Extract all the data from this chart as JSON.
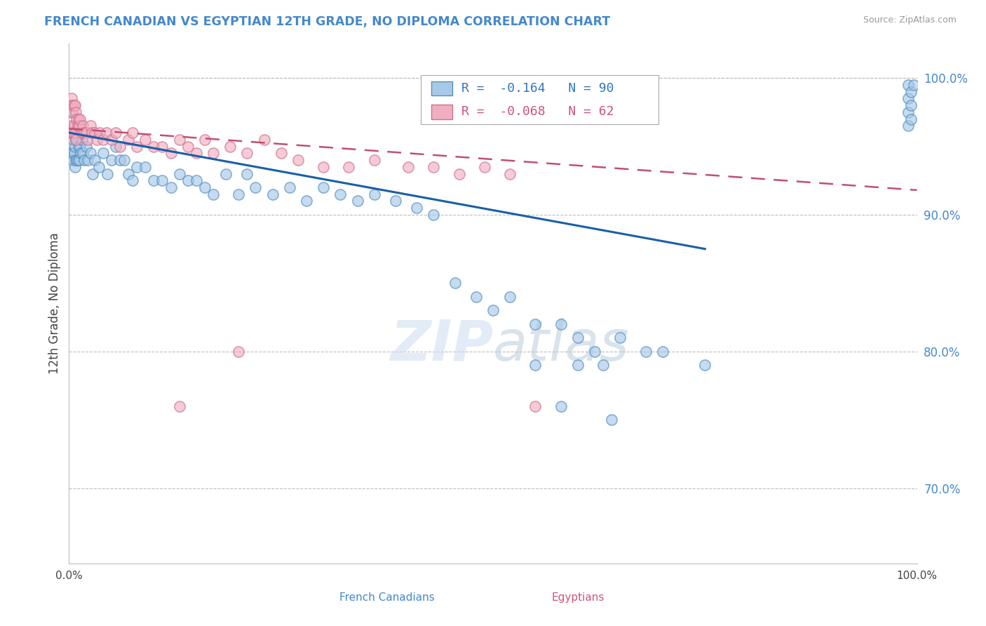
{
  "title": "FRENCH CANADIAN VS EGYPTIAN 12TH GRADE, NO DIPLOMA CORRELATION CHART",
  "source": "Source: ZipAtlas.com",
  "ylabel": "12th Grade, No Diploma",
  "watermark_zip": "ZIP",
  "watermark_atlas": "atlas",
  "blue_label": "French Canadians",
  "pink_label": "Egyptians",
  "blue_R": -0.164,
  "blue_N": 90,
  "pink_R": -0.068,
  "pink_N": 62,
  "blue_color": "#a8c8e8",
  "blue_edge": "#5590c0",
  "pink_color": "#f0afc0",
  "pink_edge": "#d07090",
  "blue_line_color": "#1a5fa8",
  "pink_line_color": "#c05070",
  "xlim": [
    0.0,
    1.0
  ],
  "ylim": [
    0.645,
    1.025
  ],
  "yticks": [
    0.7,
    0.8,
    0.9,
    1.0
  ],
  "ytick_labels": [
    "70.0%",
    "80.0%",
    "90.0%",
    "100.0%"
  ],
  "grid_color": "#bbbbbb",
  "bg_color": "#ffffff",
  "blue_x": [
    0.002,
    0.003,
    0.003,
    0.003,
    0.004,
    0.004,
    0.005,
    0.005,
    0.006,
    0.006,
    0.007,
    0.007,
    0.007,
    0.008,
    0.008,
    0.009,
    0.009,
    0.01,
    0.01,
    0.011,
    0.012,
    0.012,
    0.013,
    0.014,
    0.015,
    0.016,
    0.018,
    0.02,
    0.022,
    0.025,
    0.028,
    0.03,
    0.035,
    0.04,
    0.045,
    0.05,
    0.055,
    0.06,
    0.065,
    0.07,
    0.075,
    0.08,
    0.09,
    0.1,
    0.11,
    0.12,
    0.13,
    0.14,
    0.15,
    0.16,
    0.17,
    0.185,
    0.2,
    0.21,
    0.22,
    0.24,
    0.26,
    0.28,
    0.3,
    0.32,
    0.34,
    0.36,
    0.385,
    0.41,
    0.43,
    0.455,
    0.48,
    0.5,
    0.52,
    0.55,
    0.58,
    0.6,
    0.62,
    0.65,
    0.68,
    0.55,
    0.6,
    0.63,
    0.7,
    0.75,
    0.58,
    0.64,
    0.99,
    0.99,
    0.99,
    0.99,
    0.993,
    0.993,
    0.993,
    0.996
  ],
  "blue_y": [
    0.96,
    0.96,
    0.975,
    0.945,
    0.96,
    0.945,
    0.955,
    0.94,
    0.96,
    0.945,
    0.96,
    0.95,
    0.935,
    0.955,
    0.94,
    0.955,
    0.94,
    0.96,
    0.94,
    0.95,
    0.96,
    0.94,
    0.95,
    0.945,
    0.955,
    0.945,
    0.94,
    0.95,
    0.94,
    0.945,
    0.93,
    0.94,
    0.935,
    0.945,
    0.93,
    0.94,
    0.95,
    0.94,
    0.94,
    0.93,
    0.925,
    0.935,
    0.935,
    0.925,
    0.925,
    0.92,
    0.93,
    0.925,
    0.925,
    0.92,
    0.915,
    0.93,
    0.915,
    0.93,
    0.92,
    0.915,
    0.92,
    0.91,
    0.92,
    0.915,
    0.91,
    0.915,
    0.91,
    0.905,
    0.9,
    0.85,
    0.84,
    0.83,
    0.84,
    0.82,
    0.82,
    0.81,
    0.8,
    0.81,
    0.8,
    0.79,
    0.79,
    0.79,
    0.8,
    0.79,
    0.76,
    0.75,
    0.995,
    0.985,
    0.975,
    0.965,
    0.99,
    0.98,
    0.97,
    0.995
  ],
  "pink_x": [
    0.002,
    0.002,
    0.003,
    0.003,
    0.004,
    0.004,
    0.005,
    0.005,
    0.006,
    0.006,
    0.007,
    0.007,
    0.008,
    0.008,
    0.009,
    0.01,
    0.011,
    0.012,
    0.013,
    0.015,
    0.016,
    0.018,
    0.02,
    0.022,
    0.025,
    0.027,
    0.03,
    0.033,
    0.036,
    0.04,
    0.044,
    0.05,
    0.055,
    0.06,
    0.07,
    0.075,
    0.08,
    0.09,
    0.1,
    0.11,
    0.12,
    0.13,
    0.14,
    0.15,
    0.16,
    0.17,
    0.19,
    0.21,
    0.23,
    0.25,
    0.13,
    0.2,
    0.27,
    0.3,
    0.33,
    0.36,
    0.4,
    0.43,
    0.46,
    0.49,
    0.52,
    0.55
  ],
  "pink_y": [
    0.98,
    0.96,
    0.985,
    0.965,
    0.98,
    0.96,
    0.975,
    0.96,
    0.98,
    0.965,
    0.98,
    0.96,
    0.975,
    0.955,
    0.97,
    0.965,
    0.97,
    0.965,
    0.97,
    0.96,
    0.965,
    0.96,
    0.96,
    0.955,
    0.965,
    0.96,
    0.96,
    0.955,
    0.96,
    0.955,
    0.96,
    0.955,
    0.96,
    0.95,
    0.955,
    0.96,
    0.95,
    0.955,
    0.95,
    0.95,
    0.945,
    0.955,
    0.95,
    0.945,
    0.955,
    0.945,
    0.95,
    0.945,
    0.955,
    0.945,
    0.76,
    0.8,
    0.94,
    0.935,
    0.935,
    0.94,
    0.935,
    0.935,
    0.93,
    0.935,
    0.93,
    0.76
  ],
  "blue_trend_x0": 0.0,
  "blue_trend_y0": 0.96,
  "blue_trend_x1": 0.75,
  "blue_trend_y1": 0.875,
  "pink_trend_x0": 0.0,
  "pink_trend_y0": 0.963,
  "pink_trend_x1": 1.0,
  "pink_trend_y1": 0.918
}
